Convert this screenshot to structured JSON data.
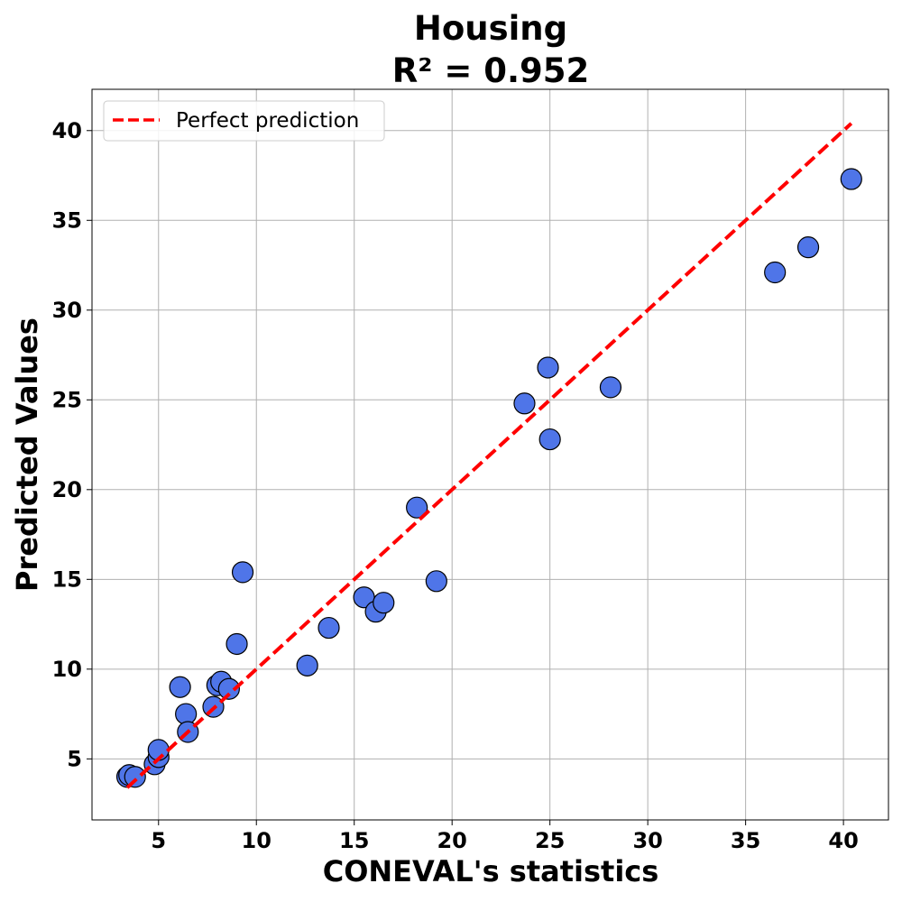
{
  "chart_data": {
    "type": "scatter",
    "title": "Housing",
    "subtitle": "R² = 0.952",
    "xlabel": "CONEVAL's statistics",
    "ylabel": "Predicted Values",
    "xlim": [
      1.6,
      42.3
    ],
    "ylim": [
      1.6,
      42.3
    ],
    "x_ticks": [
      5,
      10,
      15,
      20,
      25,
      30,
      35,
      40
    ],
    "y_ticks": [
      5,
      10,
      15,
      20,
      25,
      30,
      35,
      40
    ],
    "grid": true,
    "legend_position": "top-left",
    "series": [
      {
        "type": "scatter",
        "color": "#4f75e8",
        "edge_color": "#000000",
        "points": [
          {
            "x": 3.4,
            "y": 4.0
          },
          {
            "x": 3.5,
            "y": 4.1
          },
          {
            "x": 3.8,
            "y": 4.0
          },
          {
            "x": 4.8,
            "y": 4.7
          },
          {
            "x": 5.0,
            "y": 5.1
          },
          {
            "x": 5.0,
            "y": 5.5
          },
          {
            "x": 6.1,
            "y": 9.0
          },
          {
            "x": 6.4,
            "y": 7.5
          },
          {
            "x": 6.5,
            "y": 6.5
          },
          {
            "x": 7.8,
            "y": 7.9
          },
          {
            "x": 8.0,
            "y": 9.1
          },
          {
            "x": 8.2,
            "y": 9.3
          },
          {
            "x": 8.6,
            "y": 8.9
          },
          {
            "x": 9.0,
            "y": 11.4
          },
          {
            "x": 9.3,
            "y": 15.4
          },
          {
            "x": 12.6,
            "y": 10.2
          },
          {
            "x": 13.7,
            "y": 12.3
          },
          {
            "x": 15.5,
            "y": 14.0
          },
          {
            "x": 16.1,
            "y": 13.2
          },
          {
            "x": 16.5,
            "y": 13.7
          },
          {
            "x": 18.2,
            "y": 19.0
          },
          {
            "x": 19.2,
            "y": 14.9
          },
          {
            "x": 23.7,
            "y": 24.8
          },
          {
            "x": 24.9,
            "y": 26.8
          },
          {
            "x": 25.0,
            "y": 22.8
          },
          {
            "x": 28.1,
            "y": 25.7
          },
          {
            "x": 36.5,
            "y": 32.1
          },
          {
            "x": 38.2,
            "y": 33.5
          },
          {
            "x": 40.4,
            "y": 37.3
          }
        ]
      },
      {
        "name": "Perfect prediction",
        "type": "line",
        "style": "dashed",
        "color": "#ff0000",
        "points": [
          {
            "x": 3.4,
            "y": 3.4
          },
          {
            "x": 40.4,
            "y": 40.4
          }
        ]
      }
    ]
  }
}
